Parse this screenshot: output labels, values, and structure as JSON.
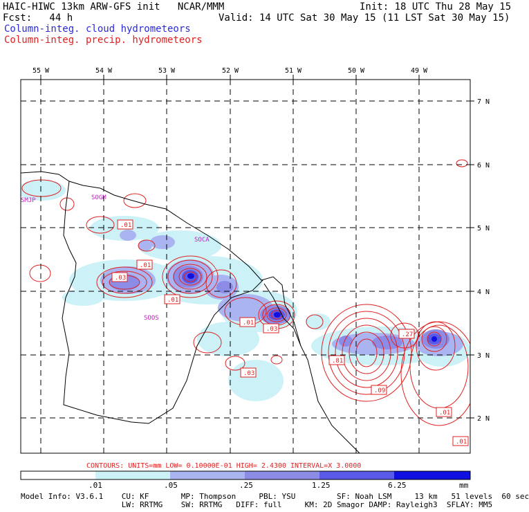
{
  "header": {
    "title_left": "HAIC-HIWC 13km ARW-GFS init   NCAR/MMM",
    "init": "Init: 18 UTC Thu 28 May 15",
    "fcst": "Fcst:   44 h",
    "valid": "Valid: 14 UTC Sat 30 May 15 (11 LST Sat 30 May 15)",
    "field_cloud": "Column-integ. cloud hydrometeors",
    "field_precip": "Column-integ. precip. hydrometeors"
  },
  "axes": {
    "lon_labels": [
      "55 W",
      "54 W",
      "53 W",
      "52 W",
      "51 W",
      "50 W",
      "49 W"
    ],
    "lat_labels": [
      "7 N",
      "6 N",
      "5 N",
      "4 N",
      "3 N",
      "2 N"
    ]
  },
  "stations": [
    "SMJP",
    "SOGM",
    "SOCA",
    "SOOS"
  ],
  "contour_labels": [
    ".01",
    ".01",
    ".03",
    ".01",
    ".01",
    ".03",
    ".81",
    ".27",
    ".09",
    ".03",
    ".01",
    ".01"
  ],
  "contours_info": "CONTOURS:  UNITS=mm  LOW= 0.10000E-01  HIGH=  2.4300      INTERVAL=X  3.0000",
  "colorbar": {
    "ticks": [
      ".01",
      ".05",
      ".25",
      "1.25",
      "6.25"
    ],
    "units": "mm",
    "colors": [
      "#ffffff",
      "#ccf2f8",
      "#aab4f0",
      "#8c8ce6",
      "#5a5ae8",
      "#3a3ae8",
      "#1010e0"
    ]
  },
  "footer": {
    "line1": "Model Info: V3.6.1    CU: KF       MP: Thompson     PBL: YSU         SF: Noah LSM     13 km   51 levels  60 sec",
    "line2": "                      LW: RRTMG    SW: RRTMG   DIFF: full     KM: 2D Smagor DAMP: Rayleigh3  SFLAY: MM5"
  }
}
